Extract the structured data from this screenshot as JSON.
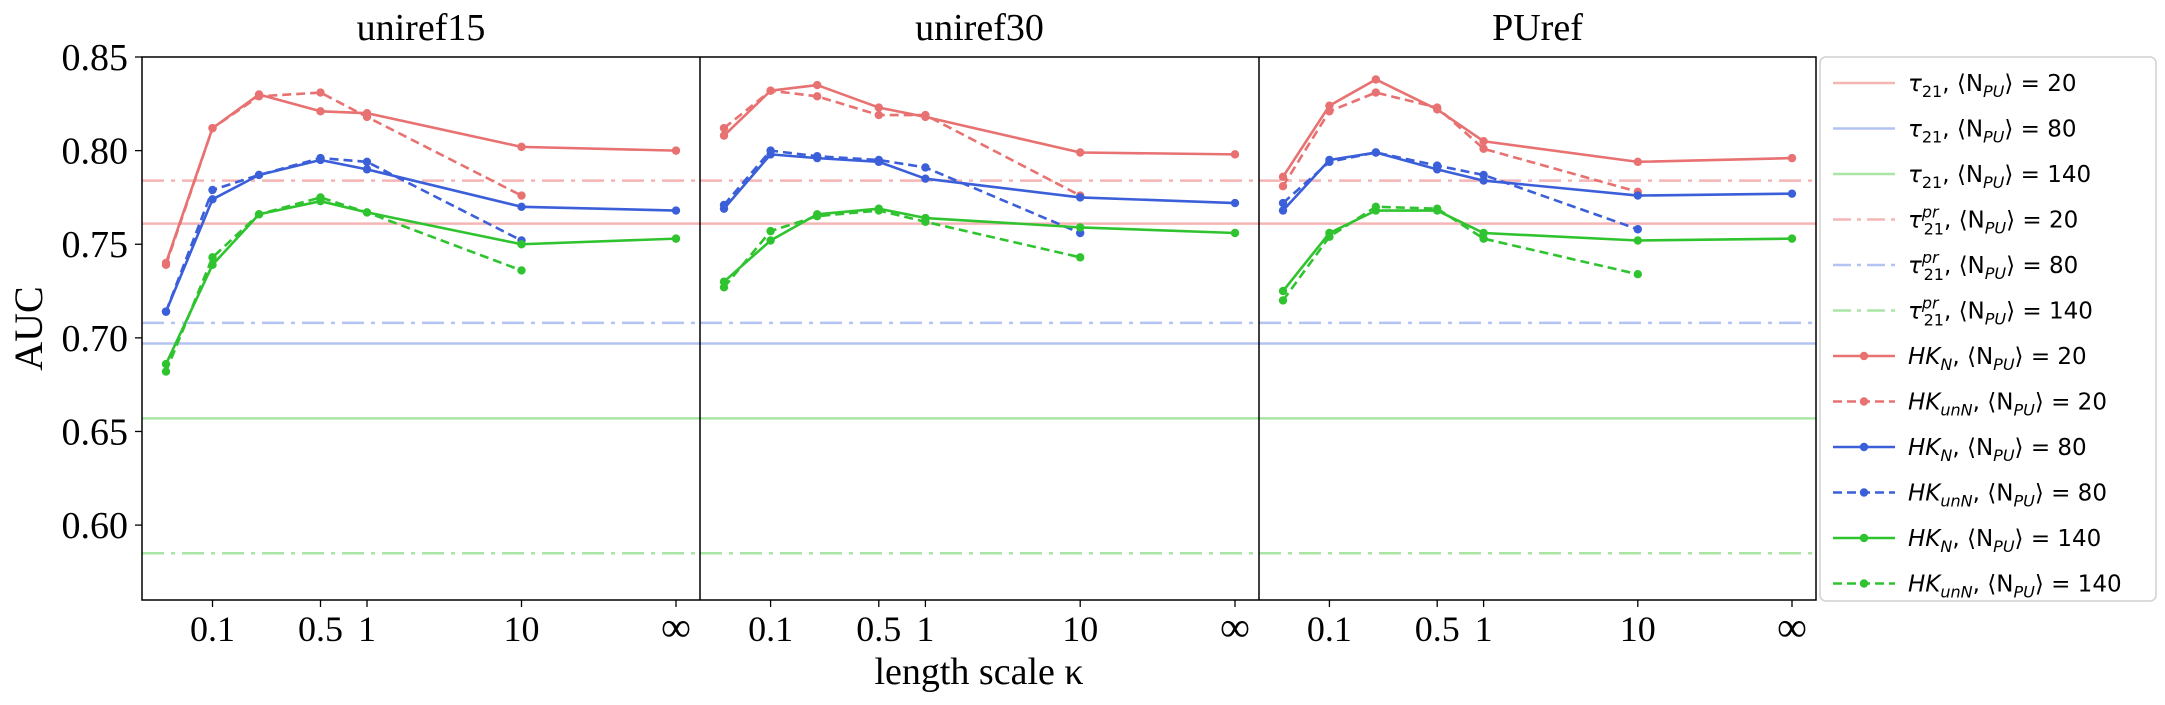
{
  "chart_data": {
    "type": "line",
    "ylabel": "AUC",
    "xlabel": "length scale κ",
    "ylim": [
      0.56,
      0.85
    ],
    "yticks": [
      "0.85",
      "0.80",
      "0.75",
      "0.70",
      "0.65",
      "0.60"
    ],
    "ytick_values": [
      0.85,
      0.8,
      0.75,
      0.7,
      0.65,
      0.6
    ],
    "xticks": [
      "0.1",
      "0.5",
      "1",
      "10",
      "∞"
    ],
    "xtick_values": [
      0.1,
      0.5,
      1,
      10,
      "inf"
    ],
    "x_scale": "log",
    "grid": false,
    "legend_position": "right, outside",
    "colors": {
      "n20": "#e87171",
      "n80": "#3b5fd9",
      "n140": "#2fc42f"
    },
    "baseline_colors": {
      "n20": "#f5b5b5",
      "n80": "#b3c4f2",
      "n140": "#a9e6a6"
    },
    "legend": [
      {
        "base": "τ",
        "sub": "21",
        "sup": "",
        "rest": ", ⟨N",
        "restsub": "PU",
        "tail": "⟩ = 20",
        "color": "#f5b5b5",
        "dash": "solid",
        "marker": false
      },
      {
        "base": "τ",
        "sub": "21",
        "sup": "",
        "rest": ", ⟨N",
        "restsub": "PU",
        "tail": "⟩ = 80",
        "color": "#b3c4f2",
        "dash": "solid",
        "marker": false
      },
      {
        "base": "τ",
        "sub": "21",
        "sup": "",
        "rest": ", ⟨N",
        "restsub": "PU",
        "tail": "⟩ = 140",
        "color": "#a9e6a6",
        "dash": "solid",
        "marker": false
      },
      {
        "base": "τ",
        "sub": "21",
        "sup": "pr",
        "rest": ", ⟨N",
        "restsub": "PU",
        "tail": "⟩ = 20",
        "color": "#f5b5b5",
        "dash": "dashdot",
        "marker": false
      },
      {
        "base": "τ",
        "sub": "21",
        "sup": "pr",
        "rest": ", ⟨N",
        "restsub": "PU",
        "tail": "⟩ = 80",
        "color": "#b3c4f2",
        "dash": "dashdot",
        "marker": false
      },
      {
        "base": "τ",
        "sub": "21",
        "sup": "pr",
        "rest": ", ⟨N",
        "restsub": "PU",
        "tail": "⟩ = 140",
        "color": "#a9e6a6",
        "dash": "dashdot",
        "marker": false
      },
      {
        "base": "HK",
        "sub": "N",
        "sup": "",
        "rest": ", ⟨N",
        "restsub": "PU",
        "tail": "⟩ = 20",
        "color": "#e87171",
        "dash": "solid",
        "marker": true
      },
      {
        "base": "HK",
        "sub": "unN",
        "sup": "",
        "rest": ", ⟨N",
        "restsub": "PU",
        "tail": "⟩ = 20",
        "color": "#e87171",
        "dash": "dashed",
        "marker": true
      },
      {
        "base": "HK",
        "sub": "N",
        "sup": "",
        "rest": ", ⟨N",
        "restsub": "PU",
        "tail": "⟩ = 80",
        "color": "#3b5fd9",
        "dash": "solid",
        "marker": true
      },
      {
        "base": "HK",
        "sub": "unN",
        "sup": "",
        "rest": ", ⟨N",
        "restsub": "PU",
        "tail": "⟩ = 80",
        "color": "#3b5fd9",
        "dash": "dashed",
        "marker": true
      },
      {
        "base": "HK",
        "sub": "N",
        "sup": "",
        "rest": ", ⟨N",
        "restsub": "PU",
        "tail": "⟩ = 140",
        "color": "#2fc42f",
        "dash": "solid",
        "marker": true
      },
      {
        "base": "HK",
        "sub": "unN",
        "sup": "",
        "rest": ", ⟨N",
        "restsub": "PU",
        "tail": "⟩ = 140",
        "color": "#2fc42f",
        "dash": "dashed",
        "marker": true
      }
    ],
    "panels": [
      {
        "title": "uniref15",
        "baselines": {
          "tau21": {
            "n20": 0.761,
            "n80": 0.697,
            "n140": 0.657
          },
          "tau21pr": {
            "n20": 0.784,
            "n80": 0.708,
            "n140": 0.585
          }
        },
        "series": {
          "HKN_20": {
            "x": [
              0.05,
              0.1,
              0.2,
              0.5,
              1,
              10,
              "inf"
            ],
            "y": [
              0.74,
              0.812,
              0.83,
              0.821,
              0.82,
              0.802,
              0.8
            ]
          },
          "HKunN_20": {
            "x": [
              0.05,
              0.1,
              0.2,
              0.5,
              1,
              10
            ],
            "y": [
              0.739,
              0.812,
              0.829,
              0.831,
              0.818,
              0.776
            ]
          },
          "HKN_80": {
            "x": [
              0.05,
              0.1,
              0.2,
              0.5,
              1,
              10,
              "inf"
            ],
            "y": [
              0.714,
              0.774,
              0.787,
              0.795,
              0.79,
              0.77,
              0.768
            ]
          },
          "HKunN_80": {
            "x": [
              0.05,
              0.1,
              0.2,
              0.5,
              1,
              10
            ],
            "y": [
              0.714,
              0.779,
              0.787,
              0.796,
              0.794,
              0.752
            ]
          },
          "HKN_140": {
            "x": [
              0.05,
              0.1,
              0.2,
              0.5,
              1,
              10,
              "inf"
            ],
            "y": [
              0.686,
              0.739,
              0.766,
              0.773,
              0.767,
              0.75,
              0.753
            ]
          },
          "HKunN_140": {
            "x": [
              0.05,
              0.1,
              0.2,
              0.5,
              1,
              10
            ],
            "y": [
              0.682,
              0.743,
              0.766,
              0.775,
              0.767,
              0.736
            ]
          }
        }
      },
      {
        "title": "uniref30",
        "baselines": {
          "tau21": {
            "n20": 0.761,
            "n80": 0.697,
            "n140": 0.657
          },
          "tau21pr": {
            "n20": 0.784,
            "n80": 0.708,
            "n140": 0.585
          }
        },
        "series": {
          "HKN_20": {
            "x": [
              0.05,
              0.1,
              0.2,
              0.5,
              1,
              10,
              "inf"
            ],
            "y": [
              0.808,
              0.832,
              0.835,
              0.823,
              0.818,
              0.799,
              0.798
            ]
          },
          "HKunN_20": {
            "x": [
              0.05,
              0.1,
              0.2,
              0.5,
              1,
              10
            ],
            "y": [
              0.812,
              0.832,
              0.829,
              0.819,
              0.819,
              0.776
            ]
          },
          "HKN_80": {
            "x": [
              0.05,
              0.1,
              0.2,
              0.5,
              1,
              10,
              "inf"
            ],
            "y": [
              0.769,
              0.798,
              0.796,
              0.794,
              0.785,
              0.775,
              0.772
            ]
          },
          "HKunN_80": {
            "x": [
              0.05,
              0.1,
              0.2,
              0.5,
              1,
              10
            ],
            "y": [
              0.771,
              0.8,
              0.797,
              0.795,
              0.791,
              0.756
            ]
          },
          "HKN_140": {
            "x": [
              0.05,
              0.1,
              0.2,
              0.5,
              1,
              10,
              "inf"
            ],
            "y": [
              0.73,
              0.752,
              0.766,
              0.769,
              0.764,
              0.759,
              0.756
            ]
          },
          "HKunN_140": {
            "x": [
              0.05,
              0.1,
              0.2,
              0.5,
              1,
              10
            ],
            "y": [
              0.727,
              0.757,
              0.765,
              0.768,
              0.762,
              0.743
            ]
          }
        }
      },
      {
        "title": "PUref",
        "baselines": {
          "tau21": {
            "n20": 0.761,
            "n80": 0.697,
            "n140": 0.657
          },
          "tau21pr": {
            "n20": 0.784,
            "n80": 0.708,
            "n140": 0.585
          }
        },
        "series": {
          "HKN_20": {
            "x": [
              0.05,
              0.1,
              0.2,
              0.5,
              1,
              10,
              "inf"
            ],
            "y": [
              0.786,
              0.824,
              0.838,
              0.822,
              0.805,
              0.794,
              0.796
            ]
          },
          "HKunN_20": {
            "x": [
              0.05,
              0.1,
              0.2,
              0.5,
              1,
              10
            ],
            "y": [
              0.781,
              0.821,
              0.831,
              0.823,
              0.801,
              0.778
            ]
          },
          "HKN_80": {
            "x": [
              0.05,
              0.1,
              0.2,
              0.5,
              1,
              10,
              "inf"
            ],
            "y": [
              0.768,
              0.795,
              0.799,
              0.79,
              0.784,
              0.776,
              0.777
            ]
          },
          "HKunN_80": {
            "x": [
              0.05,
              0.1,
              0.2,
              0.5,
              1,
              10
            ],
            "y": [
              0.772,
              0.794,
              0.799,
              0.792,
              0.787,
              0.758
            ]
          },
          "HKN_140": {
            "x": [
              0.05,
              0.1,
              0.2,
              0.5,
              1,
              10,
              "inf"
            ],
            "y": [
              0.725,
              0.756,
              0.768,
              0.768,
              0.756,
              0.752,
              0.753
            ]
          },
          "HKunN_140": {
            "x": [
              0.05,
              0.1,
              0.2,
              0.5,
              1,
              10
            ],
            "y": [
              0.72,
              0.754,
              0.77,
              0.769,
              0.753,
              0.734
            ]
          }
        }
      }
    ]
  }
}
